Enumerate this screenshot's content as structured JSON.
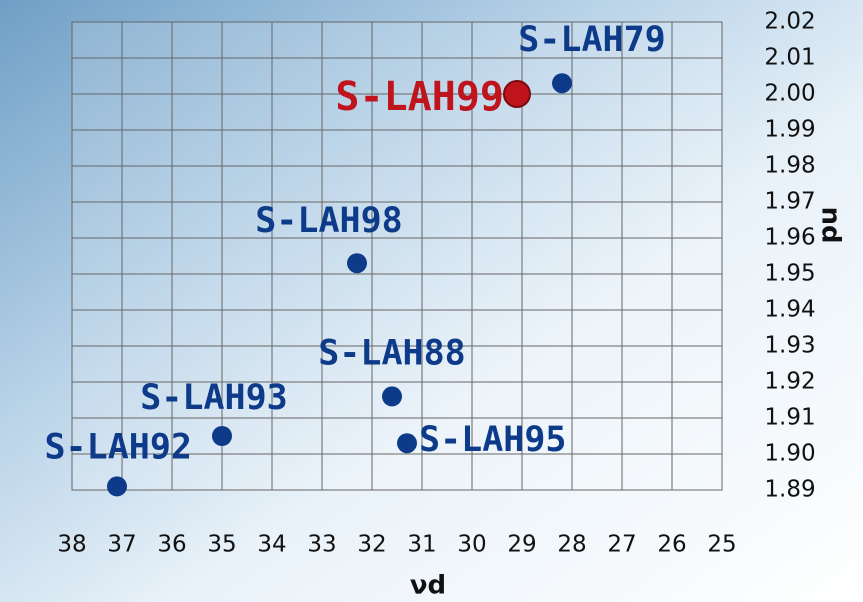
{
  "chart_data": {
    "type": "scatter",
    "xlabel": "νd",
    "ylabel": "nd",
    "xlim": [
      38,
      25
    ],
    "ylim": [
      1.89,
      2.02
    ],
    "xticks": [
      38,
      37,
      36,
      35,
      34,
      33,
      32,
      31,
      30,
      29,
      28,
      27,
      26,
      25
    ],
    "yticks": [
      {
        "value": 1.89,
        "label": "1.89"
      },
      {
        "value": 1.9,
        "label": "1.90"
      },
      {
        "value": 1.91,
        "label": "1.91"
      },
      {
        "value": 1.92,
        "label": "1.92"
      },
      {
        "value": 1.93,
        "label": "1.93"
      },
      {
        "value": 1.94,
        "label": "1.94"
      },
      {
        "value": 1.95,
        "label": "1.95"
      },
      {
        "value": 1.96,
        "label": "1.96"
      },
      {
        "value": 1.97,
        "label": "1.97"
      },
      {
        "value": 1.98,
        "label": "1.98"
      },
      {
        "value": 1.99,
        "label": "1.99"
      },
      {
        "value": 2.0,
        "label": "2.00"
      },
      {
        "value": 2.01,
        "label": "2.01"
      },
      {
        "value": 2.02,
        "label": "2.02"
      }
    ],
    "grid": true,
    "points": [
      {
        "name": "S-LAH79",
        "x": 28.2,
        "y": 2.003,
        "color": "#0d3b8a",
        "size": 10
      },
      {
        "name": "S-LAH99",
        "x": 29.1,
        "y": 2.0,
        "color": "#c0141c",
        "size": 13
      },
      {
        "name": "S-LAH98",
        "x": 32.3,
        "y": 1.953,
        "color": "#0d3b8a",
        "size": 10
      },
      {
        "name": "S-LAH88",
        "x": 31.6,
        "y": 1.916,
        "color": "#0d3b8a",
        "size": 10
      },
      {
        "name": "S-LAH95",
        "x": 31.3,
        "y": 1.903,
        "color": "#0d3b8a",
        "size": 10
      },
      {
        "name": "S-LAH93",
        "x": 35.0,
        "y": 1.905,
        "color": "#0d3b8a",
        "size": 10
      },
      {
        "name": "S-LAH92",
        "x": 37.1,
        "y": 1.891,
        "color": "#0d3b8a",
        "size": 10
      }
    ]
  }
}
